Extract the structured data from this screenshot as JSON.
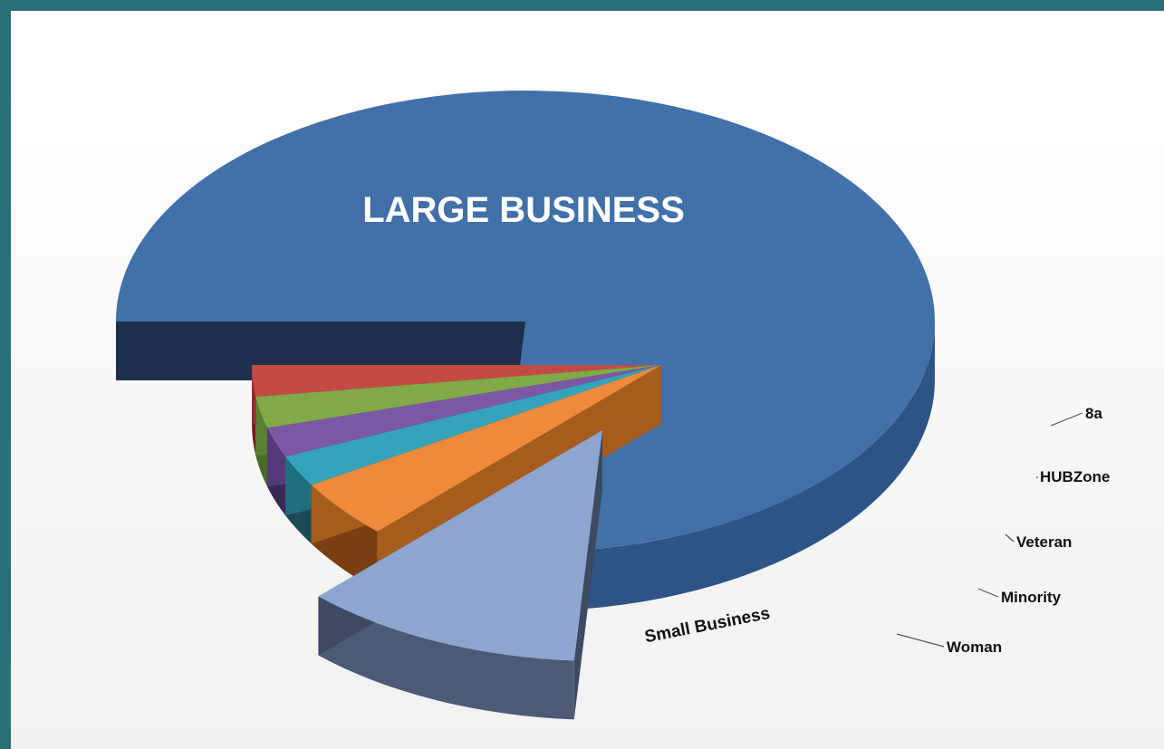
{
  "chart_data": {
    "type": "pie",
    "title": "",
    "slices": [
      {
        "label": "LARGE BUSINESS",
        "value": 0.761,
        "color": "#4270a8",
        "side": "#2e5486",
        "rim": "#1c2f4d"
      },
      {
        "label": "Small Business",
        "value": 0.111,
        "color": "#8ea6cf",
        "side": "#4c5a75",
        "rim": "#3d4a62"
      },
      {
        "label": "Woman",
        "value": 0.041,
        "color": "#ee8a3a",
        "side": "#7a3e10",
        "rim": "#a55c1c"
      },
      {
        "label": "Minority",
        "value": 0.022,
        "color": "#34a3bb",
        "side": "#1d4a55",
        "rim": "#1f6e80"
      },
      {
        "label": "Veteran",
        "value": 0.021,
        "color": "#7c58a4",
        "side": "#3a2752",
        "rim": "#55397a"
      },
      {
        "label": "HUBZone",
        "value": 0.022,
        "color": "#7faa47",
        "side": "#4a6a26",
        "rim": "#5a7f31"
      },
      {
        "label": "8a",
        "value": 0.022,
        "color": "#c44a46",
        "side": "#7a1c1c",
        "rim": "#992828"
      }
    ],
    "legend": "none",
    "labels_on": [
      "LARGE BUSINESS",
      "Small Business"
    ]
  }
}
